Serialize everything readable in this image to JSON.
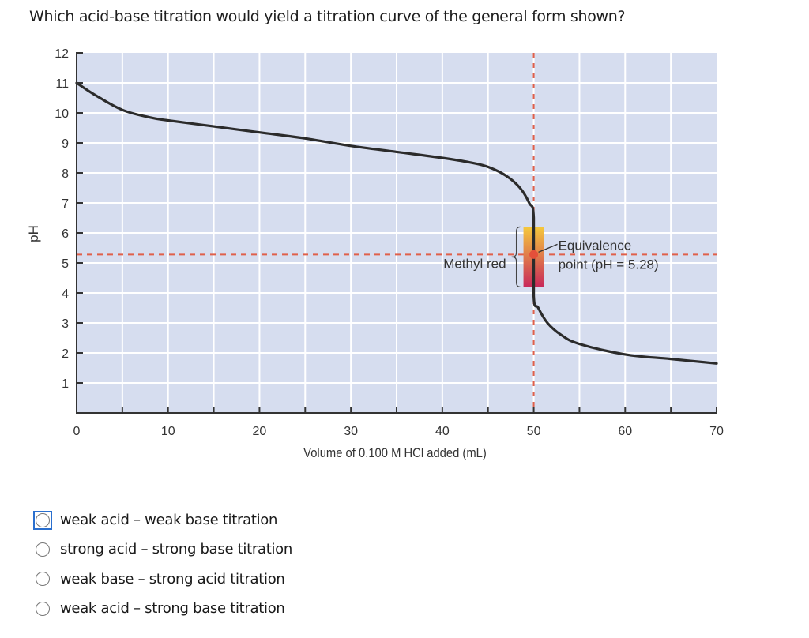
{
  "question": {
    "text": "Which acid-base titration would yield a titration curve of the general form shown?"
  },
  "chart_data": {
    "type": "line",
    "title": "",
    "xlabel": "Volume of 0.100 M HCl added (mL)",
    "ylabel": "pH",
    "xlim": [
      0,
      70
    ],
    "ylim": [
      0,
      12
    ],
    "x_ticks": [
      0,
      10,
      20,
      30,
      40,
      50,
      60,
      70
    ],
    "y_ticks": [
      1,
      2,
      3,
      4,
      5,
      6,
      7,
      8,
      9,
      10,
      11,
      12
    ],
    "grid": true,
    "series": [
      {
        "name": "Titration curve",
        "x": [
          0,
          2,
          5,
          8,
          10,
          15,
          20,
          25,
          30,
          35,
          40,
          43,
          45,
          47,
          48.5,
          49.5,
          50,
          50,
          50.5,
          51.5,
          53,
          55,
          60,
          65,
          70
        ],
        "y": [
          11.0,
          10.6,
          10.1,
          9.85,
          9.75,
          9.55,
          9.35,
          9.15,
          8.9,
          8.7,
          8.5,
          8.35,
          8.2,
          7.9,
          7.5,
          7.0,
          6.5,
          3.9,
          3.5,
          3.0,
          2.6,
          2.3,
          1.95,
          1.8,
          1.65
        ]
      }
    ],
    "annotations": [
      {
        "type": "equivalence_point",
        "x": 50,
        "y": 5.28,
        "label_line1": "Equivalence",
        "label_line2": "point (pH = 5.28)"
      },
      {
        "type": "indicator_range",
        "label": "Methyl red",
        "x": 50,
        "y_low": 4.2,
        "y_high": 6.2
      },
      {
        "type": "reference_line_horizontal",
        "y": 5.28,
        "style": "dashed",
        "color": "#e0604a"
      },
      {
        "type": "reference_line_vertical",
        "x": 50,
        "style": "dashed",
        "color": "#e0604a"
      }
    ],
    "colors": {
      "plot_bg": "#d6ddef",
      "grid": "#ffffff",
      "curve": "#2b2b2b",
      "dashed": "#e0604a",
      "indicator_top": "#f5c83c",
      "indicator_bottom": "#c8285a",
      "eq_point": "#e4503a"
    }
  },
  "options": [
    {
      "label": "weak acid – weak base titration",
      "focused": true
    },
    {
      "label": "strong acid – strong base titration",
      "focused": false
    },
    {
      "label": "weak base – strong acid titration",
      "focused": false
    },
    {
      "label": "weak acid – strong base titration",
      "focused": false
    }
  ]
}
